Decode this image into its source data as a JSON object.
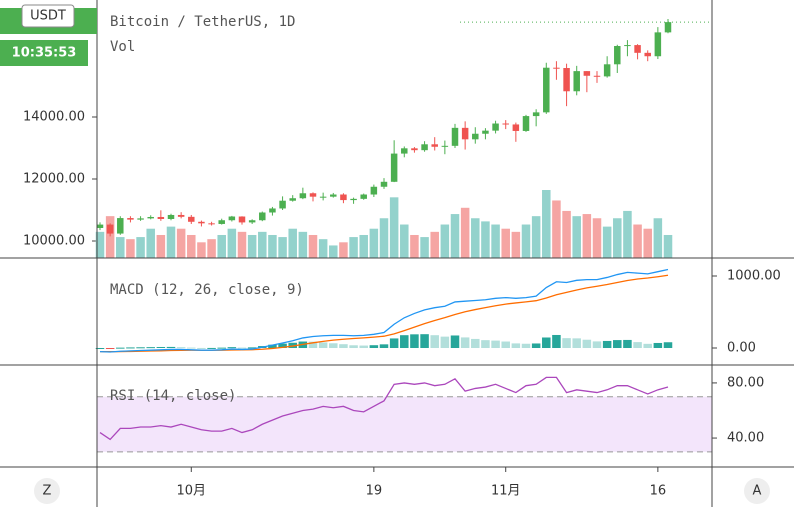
{
  "chart_data": [
    {
      "type": "candlestick",
      "title": "Bitcoin / TetherUS, 1D",
      "subtitle": "Vol",
      "currency_label": "USDT",
      "countdown": "10:35:53",
      "categories": [
        null,
        null,
        null,
        null,
        null,
        null,
        null,
        null,
        null,
        "10月",
        null,
        null,
        null,
        null,
        null,
        null,
        null,
        null,
        null,
        null,
        null,
        null,
        null,
        null,
        null,
        null,
        null,
        "19",
        null,
        null,
        null,
        null,
        null,
        null,
        null,
        null,
        null,
        null,
        null,
        null,
        "11月",
        null,
        null,
        null,
        null,
        null,
        null,
        null,
        null,
        null,
        null,
        null,
        null,
        null,
        null,
        "16",
        null
      ],
      "open": [
        10420,
        10530,
        10240,
        10740,
        10690,
        10730,
        10775,
        10710,
        10840,
        10780,
        10620,
        10570,
        10550,
        10670,
        10790,
        10600,
        10670,
        10920,
        11050,
        11300,
        11380,
        11540,
        11430,
        11430,
        11500,
        11320,
        11360,
        11500,
        11750,
        11910,
        12820,
        12990,
        12930,
        13120,
        13040,
        13070,
        13650,
        13280,
        13460,
        13560,
        13790,
        13760,
        13550,
        14030,
        14150,
        15590,
        15580,
        14830,
        15480,
        15330,
        15310,
        15700,
        16290,
        16320,
        16070,
        15960,
        16730
      ],
      "high": [
        10600,
        10570,
        10800,
        10800,
        10800,
        10830,
        10990,
        10880,
        10930,
        10840,
        10660,
        10620,
        10720,
        10810,
        10800,
        10700,
        10950,
        11100,
        11440,
        11480,
        11720,
        11570,
        11560,
        11550,
        11540,
        11400,
        11530,
        11820,
        12030,
        13250,
        13050,
        13030,
        13220,
        13350,
        13240,
        13780,
        13860,
        13670,
        13640,
        13880,
        13900,
        13820,
        14070,
        14250,
        15750,
        15800,
        15720,
        15650,
        15480,
        15480,
        15960,
        16330,
        16480,
        16350,
        16150,
        16900,
        17160
      ],
      "low": [
        10350,
        10150,
        10200,
        10600,
        10650,
        10700,
        10650,
        10670,
        10730,
        10550,
        10470,
        10500,
        10530,
        10630,
        10530,
        10550,
        10640,
        10820,
        11000,
        11270,
        11350,
        11280,
        11310,
        11400,
        11220,
        11200,
        11330,
        11420,
        11680,
        11900,
        12700,
        12850,
        12880,
        12920,
        12800,
        13000,
        12950,
        13140,
        13280,
        13470,
        13610,
        13200,
        13520,
        13700,
        14100,
        15200,
        14350,
        14700,
        14800,
        15100,
        15270,
        15420,
        15960,
        15860,
        15800,
        15870,
        16700
      ],
      "close": [
        10530,
        10240,
        10740,
        10690,
        10730,
        10775,
        10710,
        10840,
        10780,
        10620,
        10570,
        10550,
        10670,
        10790,
        10600,
        10670,
        10920,
        11050,
        11300,
        11380,
        11540,
        11430,
        11430,
        11500,
        11320,
        11360,
        11500,
        11750,
        11910,
        12820,
        12990,
        12930,
        13120,
        13040,
        13070,
        13650,
        13280,
        13460,
        13560,
        13790,
        13760,
        13550,
        14030,
        14150,
        15590,
        15580,
        14830,
        15480,
        15330,
        15310,
        15700,
        16290,
        16320,
        16070,
        15960,
        16730,
        17060
      ],
      "volume": [
        25,
        40,
        20,
        18,
        20,
        28,
        22,
        30,
        28,
        22,
        15,
        18,
        22,
        28,
        25,
        22,
        25,
        22,
        20,
        28,
        25,
        22,
        18,
        12,
        15,
        20,
        22,
        28,
        38,
        58,
        32,
        22,
        20,
        25,
        32,
        42,
        48,
        38,
        35,
        32,
        28,
        25,
        32,
        40,
        65,
        55,
        45,
        40,
        42,
        38,
        30,
        38,
        45,
        32,
        28,
        38,
        22
      ],
      "up_color": "#4caf50",
      "down_color": "#ef5350",
      "vol_up_color": "#93d2cc",
      "vol_down_color": "#f5a5a3",
      "ylim": [
        9452,
        17774
      ],
      "yticks": [
        {
          "value": 10000,
          "label": "10000.00"
        },
        {
          "value": 12000,
          "label": "12000.00"
        },
        {
          "value": 14000,
          "label": "14000.00"
        }
      ]
    },
    {
      "type": "macd",
      "title": "MACD (12, 26, close, 9)",
      "series": [
        {
          "name": "MACD",
          "color": "#2196f3",
          "values": [
            -50,
            -55,
            -45,
            -40,
            -35,
            -30,
            -25,
            -20,
            -20,
            -25,
            -30,
            -30,
            -25,
            -15,
            -20,
            -15,
            10,
            40,
            70,
            100,
            140,
            160,
            170,
            175,
            175,
            170,
            175,
            190,
            215,
            330,
            420,
            480,
            530,
            560,
            580,
            640,
            650,
            660,
            670,
            690,
            700,
            690,
            700,
            720,
            840,
            920,
            910,
            940,
            950,
            950,
            980,
            1020,
            1050,
            1040,
            1030,
            1060,
            1090
          ]
        },
        {
          "name": "Signal",
          "color": "#ff6d00",
          "values": [
            -50,
            -51,
            -50,
            -48,
            -45,
            -42,
            -39,
            -35,
            -32,
            -31,
            -31,
            -31,
            -30,
            -27,
            -26,
            -24,
            -17,
            -6,
            9,
            27,
            50,
            72,
            92,
            109,
            122,
            132,
            141,
            151,
            164,
            197,
            242,
            290,
            338,
            382,
            422,
            466,
            503,
            534,
            561,
            587,
            610,
            626,
            641,
            657,
            694,
            739,
            773,
            806,
            835,
            858,
            882,
            910,
            938,
            958,
            972,
            990,
            1010
          ]
        },
        {
          "name": "Histogram",
          "colors": [
            "#26a69a",
            "#b2dfdb",
            "#ffcdd2",
            "#ef5350"
          ],
          "values": [
            0,
            -4,
            5,
            8,
            10,
            12,
            14,
            15,
            12,
            6,
            1,
            1,
            5,
            12,
            6,
            9,
            27,
            46,
            61,
            73,
            90,
            88,
            78,
            66,
            53,
            38,
            34,
            39,
            51,
            133,
            178,
            190,
            192,
            178,
            158,
            174,
            147,
            126,
            109,
            103,
            90,
            64,
            59,
            63,
            146,
            181,
            137,
            134,
            115,
            92,
            98,
            110,
            112,
            82,
            58,
            70,
            80
          ]
        }
      ],
      "ylim": [
        -236,
        1250
      ],
      "yticks": [
        {
          "value": 1000,
          "label": "1000.00"
        },
        {
          "value": 0,
          "label": "0.00"
        }
      ]
    },
    {
      "type": "rsi",
      "title": "RSI (14, close)",
      "color": "#ab47bc",
      "band_color": "#f3e5fb",
      "bands": [
        70,
        30
      ],
      "values": [
        44,
        39,
        47,
        47,
        48,
        48,
        49,
        48,
        50,
        48,
        46,
        45,
        45,
        47,
        44,
        46,
        50,
        53,
        56,
        58,
        60,
        61,
        63,
        62,
        63,
        60,
        59,
        63,
        67,
        79,
        80,
        79,
        80,
        78,
        79,
        83,
        74,
        76,
        77,
        79,
        76,
        73,
        78,
        79,
        84,
        84,
        73,
        75,
        74,
        73,
        75,
        78,
        78,
        75,
        72,
        75,
        77
      ],
      "ylim": [
        19,
        93
      ],
      "yticks": [
        {
          "value": 80,
          "label": "80.00"
        },
        {
          "value": 40,
          "label": "40.00"
        }
      ]
    }
  ],
  "buttons": {
    "left": "Z",
    "right": "A"
  }
}
